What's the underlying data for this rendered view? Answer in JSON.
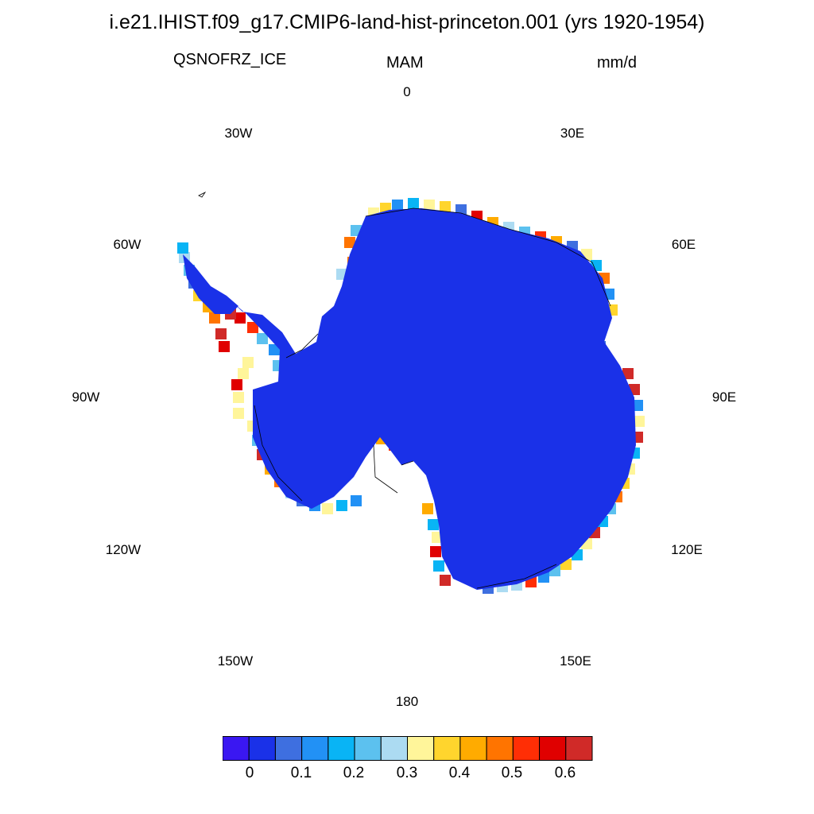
{
  "title": "i.e21.IHIST.f09_g17.CMIP6-land-hist-princeton.001 (yrs 1920-1954)",
  "variable": "QSNOFRZ_ICE",
  "season": "MAM",
  "units": "mm/d",
  "longitude_labels": {
    "lon_0": "0",
    "lon_30e": "30E",
    "lon_60e": "60E",
    "lon_90e": "90E",
    "lon_120e": "120E",
    "lon_150e": "150E",
    "lon_180": "180",
    "lon_150w": "150W",
    "lon_120w": "120W",
    "lon_90w": "90W",
    "lon_60w": "60W",
    "lon_30w": "30W"
  },
  "colorbar": {
    "colors": [
      "#3a17f2",
      "#1a31e8",
      "#3e6fe0",
      "#2291f5",
      "#09b4f5",
      "#5cc1ef",
      "#acdbf2",
      "#fff59a",
      "#ffd52d",
      "#ffab00",
      "#ff7400",
      "#ff2e05",
      "#e00000",
      "#d02a28"
    ],
    "labels": [
      "0",
      "0.1",
      "0.2",
      "0.3",
      "0.4",
      "0.5",
      "0.6"
    ]
  },
  "map_colors": {
    "interior": "#1a31e8",
    "coastline": "#000000"
  }
}
